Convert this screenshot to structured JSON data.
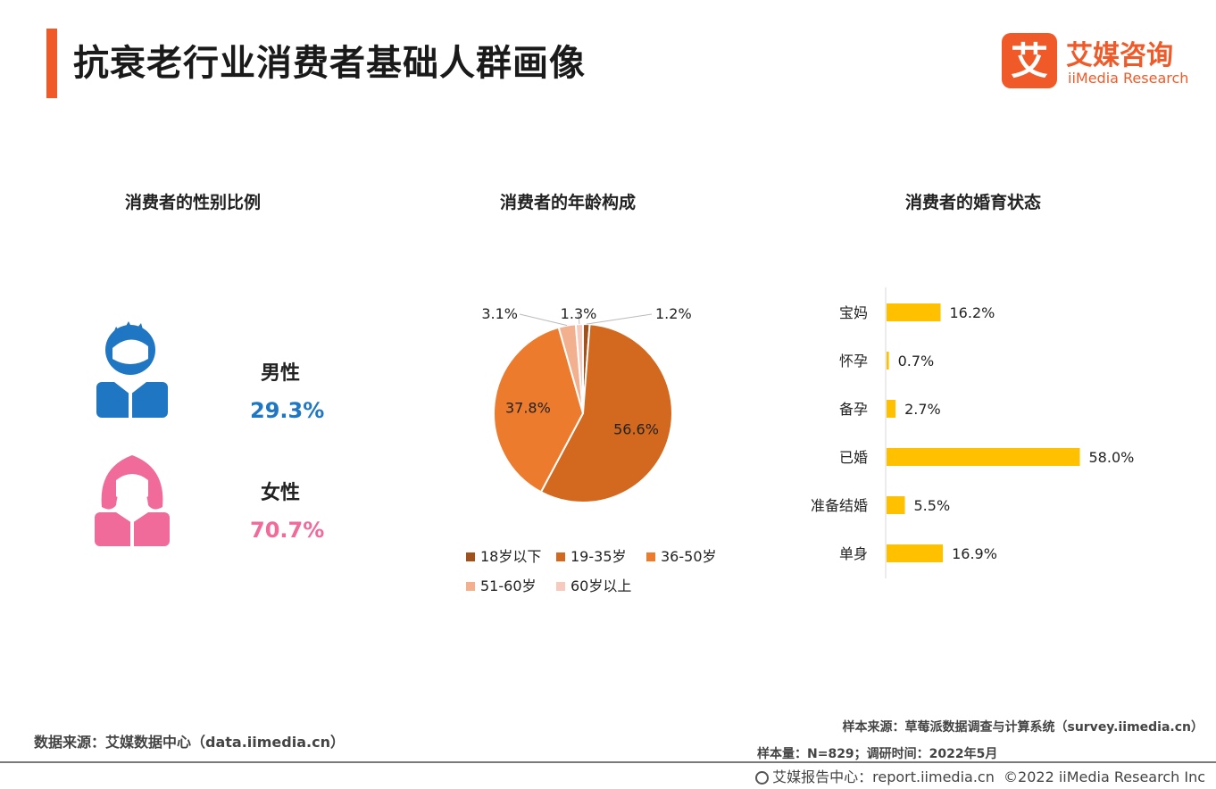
{
  "header": {
    "title": "抗衰老行业消费者基础人群画像",
    "logo_mark": "艾",
    "logo_cn": "艾媒咨询",
    "logo_en": "iiMedia Research"
  },
  "colors": {
    "accent": "#f05a28",
    "male": "#1f76c2",
    "female": "#f06a9a",
    "bar": "#ffc000"
  },
  "chart_data": [
    {
      "type": "table",
      "title": "消费者的性别比例",
      "rows": [
        {
          "label": "男性",
          "value": "29.3%",
          "icon": "male-person-icon"
        },
        {
          "label": "女性",
          "value": "70.7%",
          "icon": "female-person-icon"
        }
      ]
    },
    {
      "type": "pie",
      "title": "消费者的年龄构成",
      "slices": [
        {
          "label": "18岁以下",
          "value": 1.2,
          "value_label": "1.2%",
          "color": "#a1521c"
        },
        {
          "label": "19-35岁",
          "value": 56.6,
          "value_label": "56.6%",
          "color": "#d2691e"
        },
        {
          "label": "36-50岁",
          "value": 37.8,
          "value_label": "37.8%",
          "color": "#ec7b2d"
        },
        {
          "label": "51-60岁",
          "value": 3.1,
          "value_label": "3.1%",
          "color": "#f2b08e"
        },
        {
          "label": "60岁以上",
          "value": 1.3,
          "value_label": "1.3%",
          "color": "#f6cbbd"
        }
      ],
      "legend": "bottom"
    },
    {
      "type": "bar",
      "orientation": "horizontal",
      "title": "消费者的婚育状态",
      "categories": [
        "宝妈",
        "怀孕",
        "备孕",
        "已婚",
        "准备结婚",
        "单身"
      ],
      "values": [
        16.2,
        0.7,
        2.7,
        58.0,
        5.5,
        16.9
      ],
      "value_labels": [
        "16.2%",
        "0.7%",
        "2.7%",
        "58.0%",
        "5.5%",
        "16.9%"
      ],
      "xlim": [
        0,
        60
      ]
    }
  ],
  "footer": {
    "data_source": "数据来源：艾媒数据中心（data.iimedia.cn）",
    "sample_source": "样本来源：草莓派数据调查与计算系统（survey.iimedia.cn）",
    "sample_size": "样本量：N=829；调研时间：2022年5月",
    "report_center": "艾媒报告中心：report.iimedia.cn",
    "copyright": "©2022  iiMedia Research  Inc"
  }
}
